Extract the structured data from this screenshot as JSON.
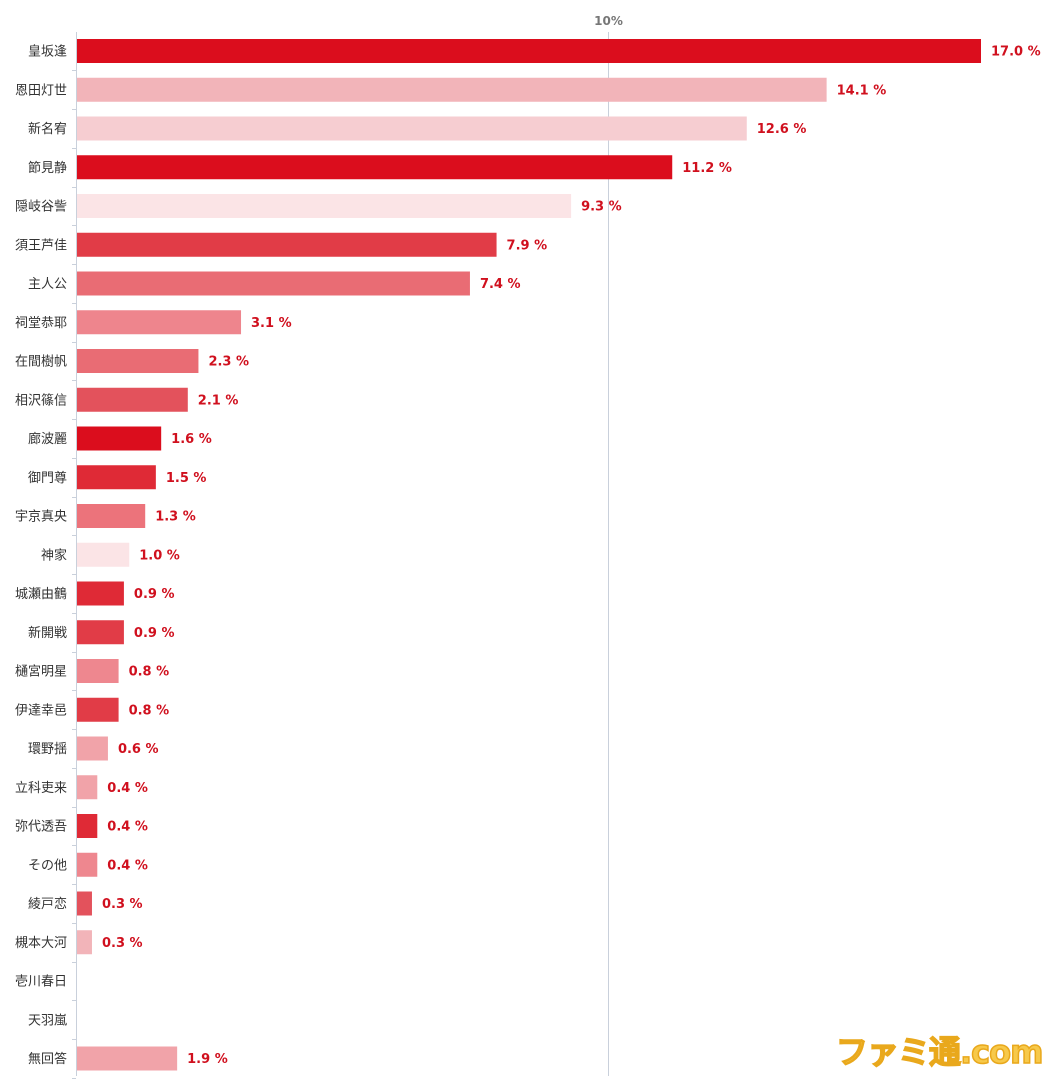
{
  "watermark": "ファミ通.com",
  "chart_data": {
    "type": "bar",
    "orientation": "horizontal",
    "xlim": [
      0,
      17
    ],
    "grid": true,
    "x_ticks": [
      {
        "value": 10,
        "label": "10%"
      }
    ],
    "value_suffix": " %",
    "categories": [
      "皇坂逢",
      "恩田灯世",
      "新名宥",
      "節見静",
      "隠岐谷訾",
      "須王芦佳",
      "主人公",
      "祠堂恭耶",
      "在間樹帆",
      "相沢篠信",
      "廊波麗",
      "御門尊",
      "宇京真央",
      "神家",
      "城瀬由鶴",
      "新開戦",
      "樋宮明星",
      "伊達幸邑",
      "環野揺",
      "立科吏来",
      "弥代透吾",
      "その他",
      "綾戸恋",
      "槻本大河",
      "壱川春日",
      "天羽嵐",
      "無回答"
    ],
    "values": [
      17.0,
      14.1,
      12.6,
      11.2,
      9.3,
      7.9,
      7.4,
      3.1,
      2.3,
      2.1,
      1.6,
      1.5,
      1.3,
      1.0,
      0.9,
      0.9,
      0.8,
      0.8,
      0.6,
      0.4,
      0.4,
      0.4,
      0.3,
      0.3,
      null,
      null,
      1.9
    ],
    "value_labels": [
      "17.0 %",
      "14.1 %",
      "12.6 %",
      "11.2 %",
      "9.3 %",
      "7.9 %",
      "7.4 %",
      "3.1 %",
      "2.3 %",
      "2.1 %",
      "1.6 %",
      "1.5 %",
      "1.3 %",
      "1.0 %",
      "0.9 %",
      "0.9 %",
      "0.8 %",
      "0.8 %",
      "0.6 %",
      "0.4 %",
      "0.4 %",
      "0.4 %",
      "0.3 %",
      "0.3 %",
      "",
      "",
      "1.9 %"
    ],
    "bar_colors": [
      "#db0d1d",
      "#f2b4b9",
      "#f6cdd1",
      "#db0d1d",
      "#fbe4e6",
      "#e13c47",
      "#e96c74",
      "#ee858d",
      "#e96c74",
      "#e3525c",
      "#db0d1d",
      "#df2a36",
      "#ec737b",
      "#fbe4e6",
      "#df2a36",
      "#e13c47",
      "#ee878f",
      "#e13c47",
      "#f1a3a9",
      "#f1a3a9",
      "#df2a36",
      "#ee878f",
      "#e3525c",
      "#f2b4b9",
      "#ffffff",
      "#ffffff",
      "#f1a3a9"
    ],
    "axis_color": "#c9d0db",
    "grid_color": "#c9d0db",
    "value_label_color": "#d0101e"
  }
}
